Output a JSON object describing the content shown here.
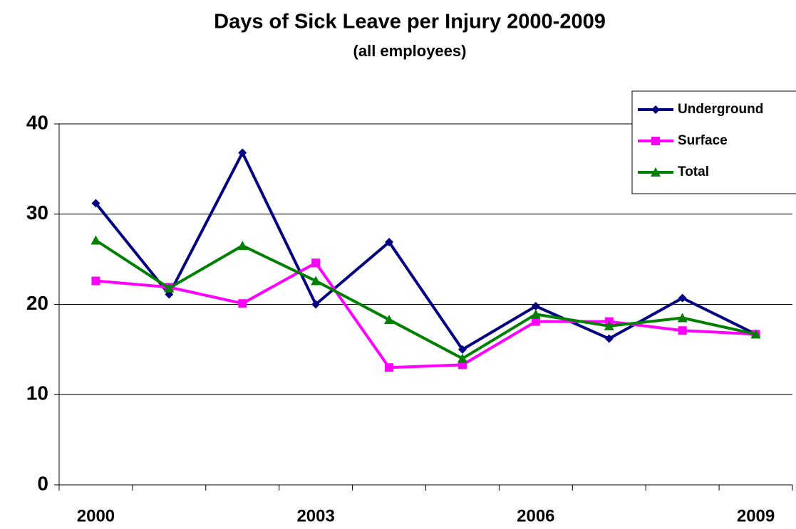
{
  "chart_data": {
    "type": "line",
    "title": "Days of Sick Leave per Injury 2000-2009",
    "subtitle": "(all employees)",
    "categories": [
      "2000",
      null,
      null,
      "2003",
      null,
      null,
      "2006",
      null,
      null,
      "2009"
    ],
    "series": [
      {
        "name": "Underground",
        "color": "#000080",
        "marker": "diamond",
        "values": [
          31.2,
          21.1,
          36.8,
          20.0,
          26.9,
          15.0,
          19.8,
          16.2,
          20.7,
          16.7
        ]
      },
      {
        "name": "Surface",
        "color": "#ff00ff",
        "marker": "square",
        "values": [
          22.6,
          21.9,
          20.1,
          24.6,
          13.0,
          13.3,
          18.1,
          18.1,
          17.1,
          16.7
        ]
      },
      {
        "name": "Total",
        "color": "#008000",
        "marker": "triangle",
        "values": [
          27.1,
          21.8,
          26.5,
          22.6,
          18.3,
          14.0,
          18.9,
          17.6,
          18.5,
          16.7
        ]
      }
    ],
    "ylim": [
      0,
      40
    ],
    "yticks": [
      0,
      10,
      20,
      30,
      40
    ],
    "grid": true,
    "legend": "top-right"
  }
}
